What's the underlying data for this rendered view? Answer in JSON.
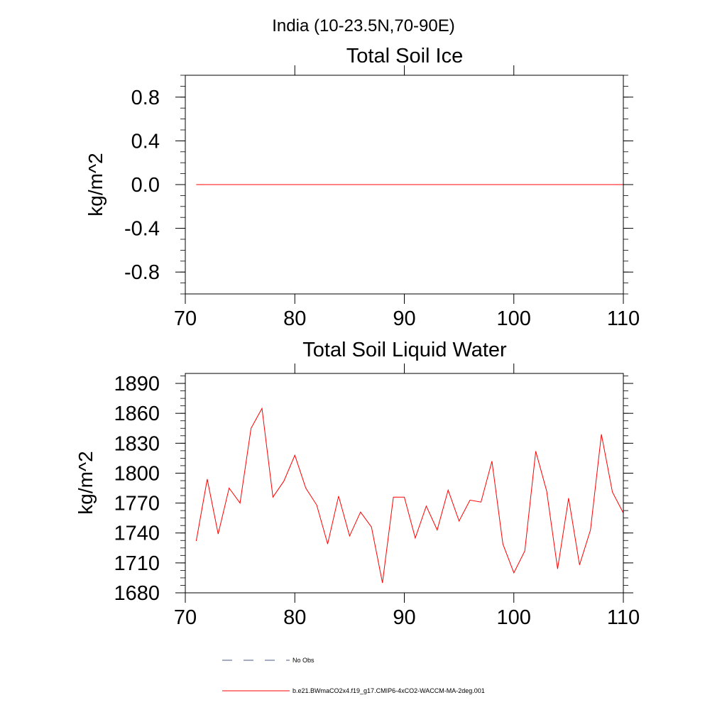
{
  "figure": {
    "region_title": "India (10-23.5N,70-90E)"
  },
  "chart_data": [
    {
      "type": "line",
      "title": "Total Soil Ice",
      "xlabel": "",
      "ylabel": "kg/m^2",
      "xlim": [
        70,
        110
      ],
      "ylim": [
        -1,
        1
      ],
      "x_ticks": [
        70,
        80,
        90,
        100,
        110
      ],
      "x_tick_labels": [
        "70",
        "80",
        "90",
        "100",
        "110"
      ],
      "y_ticks": [
        0.8,
        0.4,
        0.0,
        -0.4,
        -0.8
      ],
      "y_tick_labels": [
        "0.8",
        "0.4",
        "0.0",
        "-0.4",
        "-0.8"
      ],
      "grid": false,
      "series": [
        {
          "color": "#ff0000",
          "x": [
            71,
            110
          ],
          "y": [
            0,
            0
          ]
        }
      ]
    },
    {
      "type": "line",
      "title": "Total Soil Liquid Water",
      "xlabel": "",
      "ylabel": "kg/m^2",
      "xlim": [
        70,
        110
      ],
      "ylim": [
        1680,
        1900
      ],
      "x_ticks": [
        70,
        80,
        90,
        100,
        110
      ],
      "x_tick_labels": [
        "70",
        "80",
        "90",
        "100",
        "110"
      ],
      "y_ticks": [
        1890,
        1860,
        1830,
        1800,
        1770,
        1740,
        1710,
        1680
      ],
      "y_tick_labels": [
        "1890",
        "1860",
        "1830",
        "1800",
        "1770",
        "1740",
        "1710",
        "1680"
      ],
      "grid": false,
      "series": [
        {
          "color": "#ff0000",
          "x": [
            71,
            72,
            73,
            74,
            75,
            76,
            77,
            78,
            79,
            80,
            81,
            82,
            83,
            84,
            85,
            86,
            87,
            88,
            89,
            90,
            91,
            92,
            93,
            94,
            95,
            96,
            97,
            98,
            99,
            100,
            101,
            102,
            103,
            104,
            105,
            106,
            107,
            108,
            109,
            110
          ],
          "y": [
            1732,
            1794,
            1739,
            1785,
            1770,
            1845,
            1865,
            1776,
            1792,
            1818,
            1785,
            1768,
            1729,
            1777,
            1737,
            1761,
            1746,
            1690,
            1776,
            1776,
            1735,
            1767,
            1743,
            1783,
            1752,
            1773,
            1771,
            1812,
            1729,
            1700,
            1722,
            1822,
            1782,
            1704,
            1775,
            1708,
            1743,
            1839,
            1781,
            1760
          ]
        }
      ]
    }
  ],
  "legend": {
    "placement": "bottom",
    "items": [
      {
        "label": "No Obs",
        "color": "#4a5a8a",
        "style": "dashed"
      },
      {
        "label": "b.e21.BWmaCO2x4.f19_g17.CMIP6-4xCO2-WACCM-MA-2deg.001",
        "color": "#ff0000",
        "style": "solid"
      }
    ]
  }
}
